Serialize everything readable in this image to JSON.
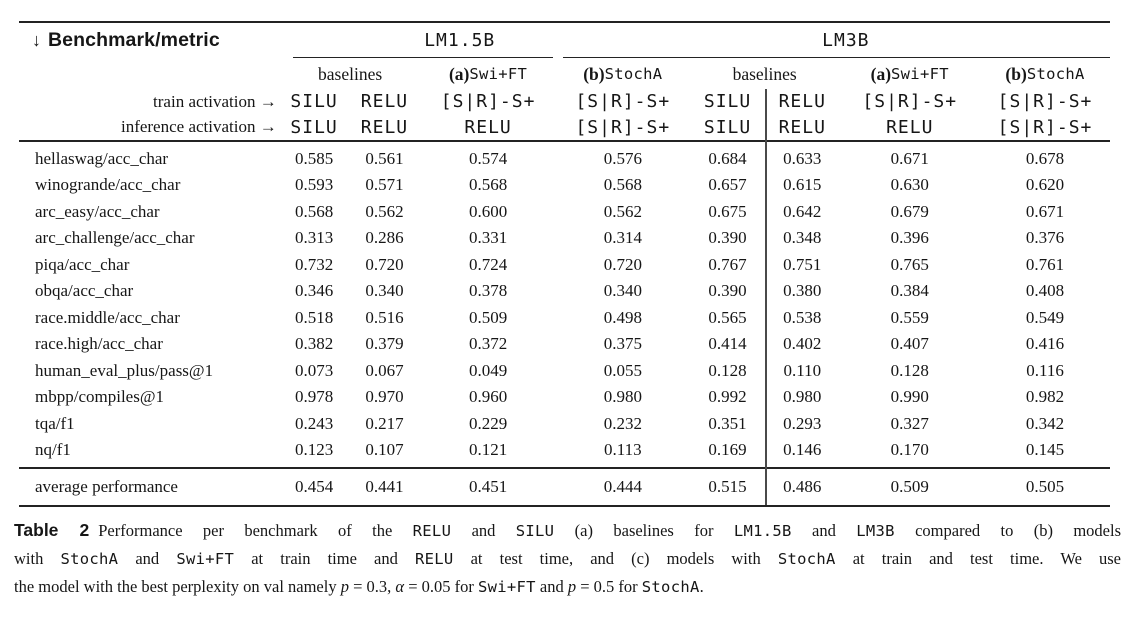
{
  "colors": {
    "text": "#161616",
    "rule": "#232323",
    "divider": "#4a4a4a",
    "bg": "#ffffff"
  },
  "table": {
    "corner_arrow": "↓",
    "corner_label": "Benchmark/metric",
    "group_headers": {
      "lm15b": "LM1.5B",
      "lm3b": "LM3B"
    },
    "method_headers": [
      [
        {
          "st": "r",
          "s": "baselines"
        }
      ],
      [
        {
          "st": "b",
          "s": "(a) "
        },
        {
          "st": "m",
          "s": "Swi+FT"
        }
      ],
      [
        {
          "st": "b",
          "s": "(b) "
        },
        {
          "st": "m",
          "s": "StochA"
        }
      ],
      [
        {
          "st": "r",
          "s": "baselines"
        }
      ],
      [
        {
          "st": "b",
          "s": "(a) "
        },
        {
          "st": "m",
          "s": "Swi+FT"
        }
      ],
      [
        {
          "st": "b",
          "s": "(b) "
        },
        {
          "st": "m",
          "s": "StochA"
        }
      ]
    ],
    "activation_rows": [
      {
        "label": "train activation →",
        "values": [
          "SILU",
          "RELU",
          "[S|R]-S+",
          "[S|R]-S+",
          "SILU",
          "RELU",
          "[S|R]-S+",
          "[S|R]-S+"
        ]
      },
      {
        "label": "inference activation →",
        "values": [
          "SILU",
          "RELU",
          "RELU",
          "[S|R]-S+",
          "SILU",
          "RELU",
          "RELU",
          "[S|R]-S+"
        ]
      }
    ],
    "rows": [
      {
        "label": "hellaswag/acc_char",
        "values": [
          "0.585",
          "0.561",
          "0.574",
          "0.576",
          "0.684",
          "0.633",
          "0.671",
          "0.678"
        ]
      },
      {
        "label": "winogrande/acc_char",
        "values": [
          "0.593",
          "0.571",
          "0.568",
          "0.568",
          "0.657",
          "0.615",
          "0.630",
          "0.620"
        ]
      },
      {
        "label": "arc_easy/acc_char",
        "values": [
          "0.568",
          "0.562",
          "0.600",
          "0.562",
          "0.675",
          "0.642",
          "0.679",
          "0.671"
        ]
      },
      {
        "label": "arc_challenge/acc_char",
        "values": [
          "0.313",
          "0.286",
          "0.331",
          "0.314",
          "0.390",
          "0.348",
          "0.396",
          "0.376"
        ]
      },
      {
        "label": "piqa/acc_char",
        "values": [
          "0.732",
          "0.720",
          "0.724",
          "0.720",
          "0.767",
          "0.751",
          "0.765",
          "0.761"
        ]
      },
      {
        "label": "obqa/acc_char",
        "values": [
          "0.346",
          "0.340",
          "0.378",
          "0.340",
          "0.390",
          "0.380",
          "0.384",
          "0.408"
        ]
      },
      {
        "label": "race.middle/acc_char",
        "values": [
          "0.518",
          "0.516",
          "0.509",
          "0.498",
          "0.565",
          "0.538",
          "0.559",
          "0.549"
        ]
      },
      {
        "label": "race.high/acc_char",
        "values": [
          "0.382",
          "0.379",
          "0.372",
          "0.375",
          "0.414",
          "0.402",
          "0.407",
          "0.416"
        ]
      },
      {
        "label": "human_eval_plus/pass@1",
        "values": [
          "0.073",
          "0.067",
          "0.049",
          "0.055",
          "0.128",
          "0.110",
          "0.128",
          "0.116"
        ]
      },
      {
        "label": "mbpp/compiles@1",
        "values": [
          "0.978",
          "0.970",
          "0.960",
          "0.980",
          "0.992",
          "0.980",
          "0.990",
          "0.982"
        ]
      },
      {
        "label": "tqa/f1",
        "values": [
          "0.243",
          "0.217",
          "0.229",
          "0.232",
          "0.351",
          "0.293",
          "0.327",
          "0.342"
        ]
      },
      {
        "label": "nq/f1",
        "values": [
          "0.123",
          "0.107",
          "0.121",
          "0.113",
          "0.169",
          "0.146",
          "0.170",
          "0.145"
        ]
      }
    ],
    "average_row": {
      "label": "average performance",
      "values": [
        "0.454",
        "0.441",
        "0.451",
        "0.444",
        "0.515",
        "0.486",
        "0.509",
        "0.505"
      ]
    }
  },
  "caption": {
    "lines": [
      [
        {
          "st": "bs",
          "s": "Table 2"
        },
        {
          "st": "r",
          "s": "Performance per benchmark of the "
        },
        {
          "st": "m",
          "s": "RELU"
        },
        {
          "st": "r",
          "s": " and "
        },
        {
          "st": "m",
          "s": "SILU"
        },
        {
          "st": "r",
          "s": " (a) baselines for "
        },
        {
          "st": "m",
          "s": "LM1.5B"
        },
        {
          "st": "r",
          "s": " and "
        },
        {
          "st": "m",
          "s": "LM3B"
        },
        {
          "st": "r",
          "s": " compared to (b) models"
        }
      ],
      [
        {
          "st": "r",
          "s": "with "
        },
        {
          "st": "m",
          "s": "StochA"
        },
        {
          "st": "r",
          "s": " and "
        },
        {
          "st": "m",
          "s": "Swi+FT"
        },
        {
          "st": "r",
          "s": " at train time and "
        },
        {
          "st": "m",
          "s": "RELU"
        },
        {
          "st": "r",
          "s": " at test time, and (c) models with "
        },
        {
          "st": "m",
          "s": "StochA"
        },
        {
          "st": "r",
          "s": " at train and test time. We use"
        }
      ],
      [
        {
          "st": "r",
          "s": "the model with the best perplexity on val namely "
        },
        {
          "st": "i",
          "s": "p"
        },
        {
          "st": "r",
          "s": " = 0.3, "
        },
        {
          "st": "i",
          "s": "α"
        },
        {
          "st": "r",
          "s": " = 0.05 for "
        },
        {
          "st": "m",
          "s": "Swi+FT"
        },
        {
          "st": "r",
          "s": " and "
        },
        {
          "st": "i",
          "s": "p"
        },
        {
          "st": "r",
          "s": " = 0.5 for "
        },
        {
          "st": "m",
          "s": "StochA"
        },
        {
          "st": "r",
          "s": "."
        }
      ]
    ]
  }
}
